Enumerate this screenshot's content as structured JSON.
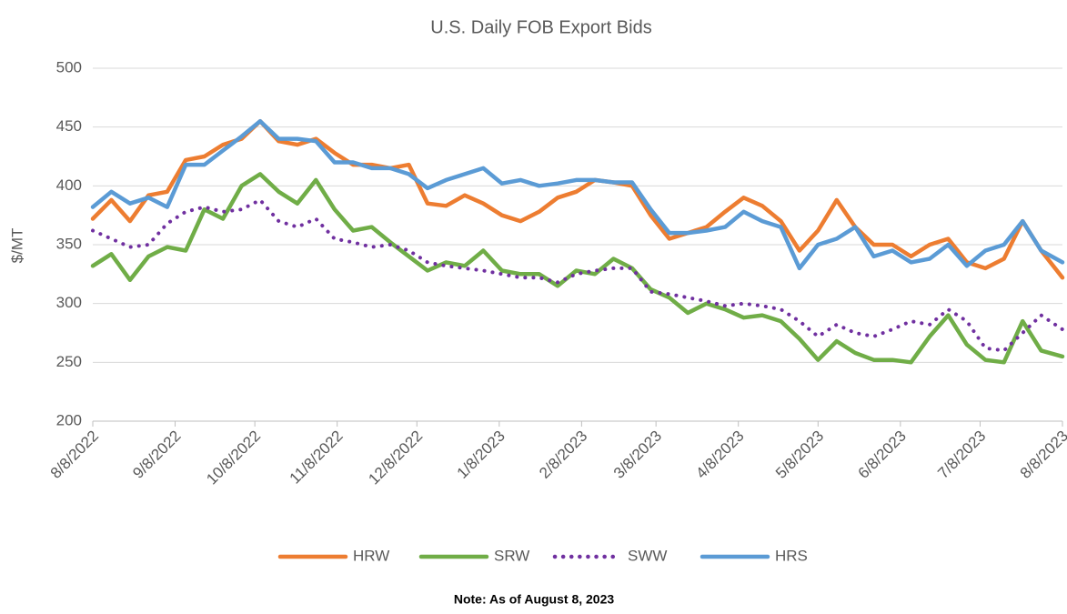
{
  "chart_data": {
    "type": "line",
    "title": "U.S. Daily FOB Export Bids",
    "y_label": "$/MT",
    "note": "Note: As of August 8, 2023",
    "x": [
      "8/8/2022",
      "8/15/2022",
      "8/22/2022",
      "8/29/2022",
      "9/5/2022",
      "9/12/2022",
      "9/19/2022",
      "9/26/2022",
      "10/3/2022",
      "10/10/2022",
      "10/17/2022",
      "10/24/2022",
      "10/31/2022",
      "11/7/2022",
      "11/14/2022",
      "11/21/2022",
      "11/28/2022",
      "12/5/2022",
      "12/12/2022",
      "12/19/2022",
      "12/26/2022",
      "1/2/2023",
      "1/9/2023",
      "1/16/2023",
      "1/23/2023",
      "1/30/2023",
      "2/6/2023",
      "2/13/2023",
      "2/20/2023",
      "2/27/2023",
      "3/6/2023",
      "3/13/2023",
      "3/20/2023",
      "3/27/2023",
      "4/3/2023",
      "4/10/2023",
      "4/17/2023",
      "4/24/2023",
      "5/1/2023",
      "5/8/2023",
      "5/15/2023",
      "5/22/2023",
      "5/29/2023",
      "6/5/2023",
      "6/12/2023",
      "6/19/2023",
      "6/26/2023",
      "7/3/2023",
      "7/10/2023",
      "7/17/2023",
      "7/24/2023",
      "7/31/2023",
      "8/8/2023"
    ],
    "series": [
      {
        "name": "HRW",
        "color": "#ed7d31",
        "style": "solid",
        "values": [
          372,
          388,
          370,
          392,
          395,
          422,
          425,
          435,
          440,
          455,
          438,
          435,
          440,
          428,
          418,
          418,
          415,
          418,
          385,
          383,
          392,
          385,
          375,
          370,
          378,
          390,
          395,
          405,
          403,
          400,
          375,
          355,
          360,
          365,
          378,
          390,
          383,
          370,
          345,
          362,
          388,
          365,
          350,
          350,
          340,
          350,
          355,
          335,
          330,
          338,
          370,
          345,
          322
        ]
      },
      {
        "name": "SRW",
        "color": "#70ad47",
        "style": "solid",
        "values": [
          332,
          342,
          320,
          340,
          348,
          345,
          380,
          372,
          400,
          410,
          395,
          385,
          405,
          380,
          362,
          365,
          352,
          340,
          328,
          335,
          332,
          345,
          328,
          325,
          325,
          315,
          328,
          325,
          338,
          330,
          312,
          305,
          292,
          300,
          295,
          288,
          290,
          285,
          270,
          252,
          268,
          258,
          252,
          252,
          250,
          272,
          290,
          265,
          252,
          250,
          285,
          260,
          255
        ]
      },
      {
        "name": "SWW",
        "color": "#7030a0",
        "style": "dotted",
        "values": [
          362,
          355,
          348,
          350,
          368,
          378,
          382,
          378,
          380,
          388,
          370,
          365,
          372,
          355,
          352,
          348,
          350,
          345,
          335,
          332,
          330,
          328,
          325,
          322,
          322,
          318,
          325,
          328,
          330,
          330,
          310,
          308,
          305,
          302,
          298,
          300,
          298,
          295,
          285,
          272,
          282,
          275,
          272,
          278,
          285,
          282,
          295,
          285,
          262,
          260,
          275,
          290,
          278
        ]
      },
      {
        "name": "HRS",
        "color": "#5b9bd5",
        "style": "solid",
        "values": [
          382,
          395,
          385,
          390,
          382,
          418,
          418,
          430,
          442,
          455,
          440,
          440,
          438,
          420,
          420,
          415,
          415,
          410,
          398,
          405,
          410,
          415,
          402,
          405,
          400,
          402,
          405,
          405,
          403,
          403,
          380,
          360,
          360,
          362,
          365,
          378,
          370,
          365,
          330,
          350,
          355,
          365,
          340,
          345,
          335,
          338,
          350,
          332,
          345,
          350,
          370,
          345,
          335
        ]
      }
    ],
    "xlim": [
      "8/8/2022",
      "8/8/2023"
    ],
    "xticks": [
      "8/8/2022",
      "9/8/2022",
      "10/8/2022",
      "11/8/2022",
      "12/8/2022",
      "1/8/2023",
      "2/8/2023",
      "3/8/2023",
      "4/8/2023",
      "5/8/2023",
      "6/8/2023",
      "7/8/2023",
      "8/8/2023"
    ],
    "ylim": [
      200,
      500
    ],
    "yticks": [
      200,
      250,
      300,
      350,
      400,
      450,
      500
    ],
    "grid": true,
    "legend": "bottom"
  }
}
